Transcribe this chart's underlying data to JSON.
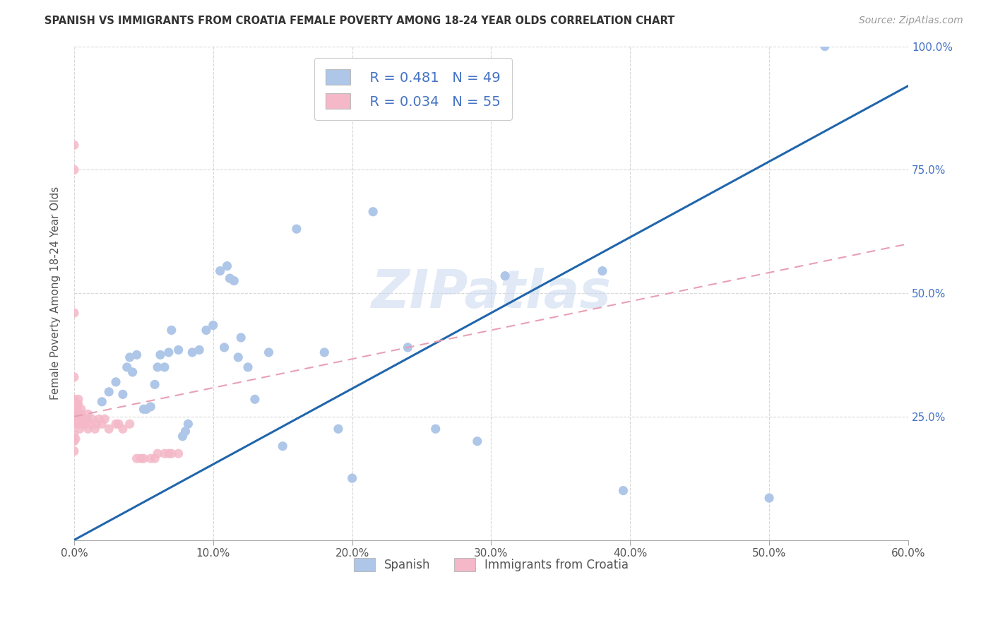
{
  "title": "SPANISH VS IMMIGRANTS FROM CROATIA FEMALE POVERTY AMONG 18-24 YEAR OLDS CORRELATION CHART",
  "source": "Source: ZipAtlas.com",
  "ylabel": "Female Poverty Among 18-24 Year Olds",
  "xlim": [
    0.0,
    0.6
  ],
  "ylim": [
    0.0,
    1.0
  ],
  "xtick_labels": [
    "0.0%",
    "10.0%",
    "20.0%",
    "30.0%",
    "40.0%",
    "50.0%",
    "60.0%"
  ],
  "xtick_vals": [
    0.0,
    0.1,
    0.2,
    0.3,
    0.4,
    0.5,
    0.6
  ],
  "ytick_vals": [
    0.0,
    0.25,
    0.5,
    0.75,
    1.0
  ],
  "watermark": "ZIPatlas",
  "spanish_color": "#aec6e8",
  "croatia_color": "#f4b8c8",
  "trend_spanish_color": "#2166ac",
  "trend_croatia_color": "#e8a0b4",
  "legend_R_spanish": "R = 0.481",
  "legend_N_spanish": "N = 49",
  "legend_R_croatia": "R = 0.034",
  "legend_N_croatia": "N = 55",
  "trend_spanish_x0": 0.0,
  "trend_spanish_y0": 0.0,
  "trend_spanish_x1": 0.6,
  "trend_spanish_y1": 0.92,
  "trend_croatia_x0": 0.0,
  "trend_croatia_y0": 0.25,
  "trend_croatia_x1": 0.6,
  "trend_croatia_y1": 0.6,
  "spanish_x": [
    0.02,
    0.025,
    0.03,
    0.035,
    0.038,
    0.04,
    0.042,
    0.045,
    0.05,
    0.052,
    0.055,
    0.058,
    0.06,
    0.062,
    0.065,
    0.068,
    0.07,
    0.075,
    0.078,
    0.08,
    0.082,
    0.085,
    0.09,
    0.095,
    0.1,
    0.105,
    0.108,
    0.11,
    0.112,
    0.115,
    0.118,
    0.12,
    0.125,
    0.13,
    0.14,
    0.15,
    0.16,
    0.18,
    0.19,
    0.2,
    0.215,
    0.24,
    0.26,
    0.29,
    0.31,
    0.38,
    0.395,
    0.5,
    0.54
  ],
  "spanish_y": [
    0.28,
    0.3,
    0.32,
    0.295,
    0.35,
    0.37,
    0.34,
    0.375,
    0.265,
    0.265,
    0.27,
    0.315,
    0.35,
    0.375,
    0.35,
    0.38,
    0.425,
    0.385,
    0.21,
    0.22,
    0.235,
    0.38,
    0.385,
    0.425,
    0.435,
    0.545,
    0.39,
    0.555,
    0.53,
    0.525,
    0.37,
    0.41,
    0.35,
    0.285,
    0.38,
    0.19,
    0.63,
    0.38,
    0.225,
    0.125,
    0.665,
    0.39,
    0.225,
    0.2,
    0.535,
    0.545,
    0.1,
    0.085,
    1.0
  ],
  "croatia_x": [
    0.0,
    0.0,
    0.0,
    0.0,
    0.0,
    0.0,
    0.0,
    0.0,
    0.0,
    0.0,
    0.001,
    0.001,
    0.001,
    0.001,
    0.002,
    0.002,
    0.002,
    0.002,
    0.003,
    0.003,
    0.003,
    0.003,
    0.004,
    0.004,
    0.005,
    0.005,
    0.006,
    0.006,
    0.007,
    0.008,
    0.009,
    0.01,
    0.01,
    0.012,
    0.013,
    0.015,
    0.016,
    0.018,
    0.02,
    0.022,
    0.025,
    0.03,
    0.032,
    0.035,
    0.04,
    0.045,
    0.048,
    0.05,
    0.055,
    0.058,
    0.06,
    0.065,
    0.068,
    0.07,
    0.075
  ],
  "croatia_y": [
    0.8,
    0.75,
    0.46,
    0.33,
    0.285,
    0.265,
    0.235,
    0.215,
    0.2,
    0.18,
    0.265,
    0.245,
    0.235,
    0.205,
    0.275,
    0.265,
    0.255,
    0.245,
    0.285,
    0.275,
    0.255,
    0.235,
    0.245,
    0.225,
    0.265,
    0.255,
    0.245,
    0.235,
    0.24,
    0.235,
    0.245,
    0.255,
    0.225,
    0.235,
    0.245,
    0.225,
    0.235,
    0.245,
    0.235,
    0.245,
    0.225,
    0.235,
    0.235,
    0.225,
    0.235,
    0.165,
    0.165,
    0.165,
    0.165,
    0.165,
    0.175,
    0.175,
    0.175,
    0.175,
    0.175
  ],
  "background_color": "#ffffff",
  "grid_color": "#d8d8d8"
}
